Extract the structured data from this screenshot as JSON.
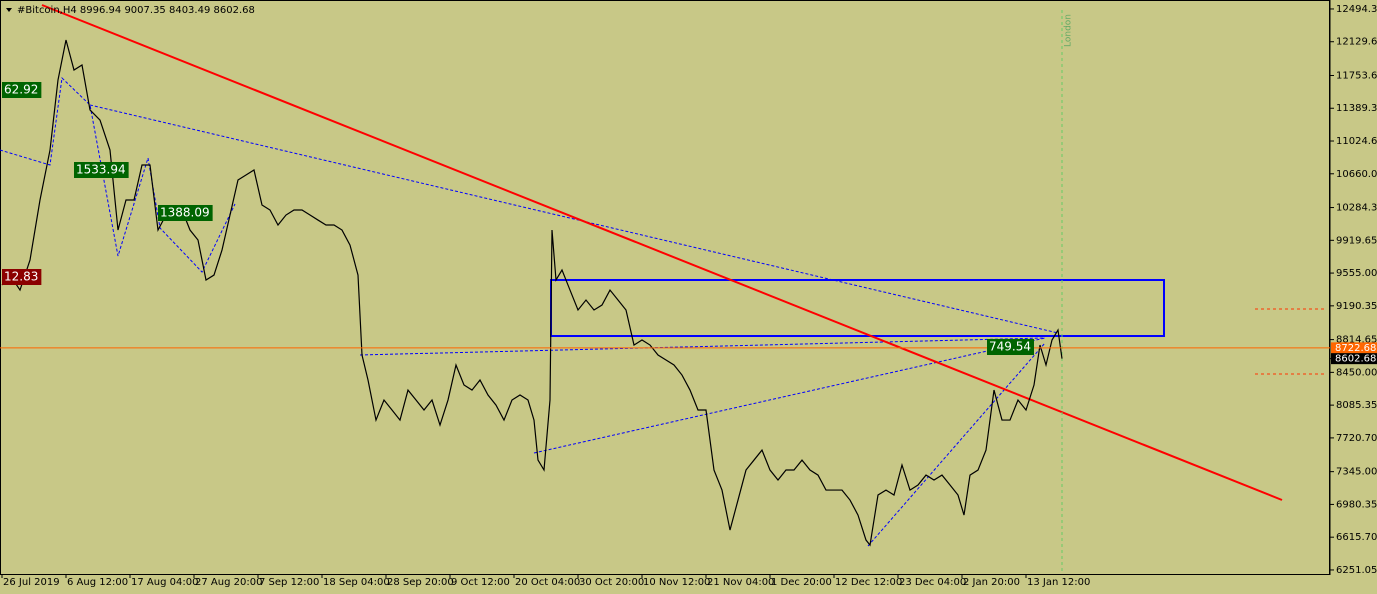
{
  "chart_data": {
    "type": "line",
    "header": "#Bitcoin,H4  8996.94 9007.35 8403.49 8602.68",
    "x": [
      0,
      8,
      18,
      28,
      38,
      48,
      56,
      64,
      72,
      80,
      88,
      98,
      108,
      116,
      124,
      132,
      140,
      148,
      156,
      164,
      172,
      180,
      188,
      196,
      204,
      212,
      220,
      228,
      236,
      244,
      252,
      260,
      268,
      276,
      284,
      292,
      300,
      308,
      316,
      324,
      332,
      340,
      348,
      356,
      360,
      366,
      374,
      382,
      390,
      398,
      406,
      414,
      422,
      430,
      438,
      446,
      454,
      462,
      470,
      478,
      486,
      494,
      502,
      510,
      518,
      526,
      532,
      536,
      542,
      548,
      550,
      554,
      560,
      568,
      576,
      584,
      592,
      600,
      608,
      616,
      624,
      632,
      640,
      648,
      656,
      664,
      672,
      680,
      688,
      696,
      704,
      712,
      720,
      728,
      736,
      744,
      752,
      760,
      768,
      776,
      784,
      792,
      800,
      808,
      816,
      824,
      832,
      840,
      848,
      856,
      864,
      868,
      876,
      884,
      892,
      900,
      908,
      916,
      924,
      932,
      940,
      948,
      956,
      962,
      968,
      976,
      984,
      992,
      1000,
      1008,
      1016,
      1024,
      1032,
      1038,
      1044,
      1050,
      1056,
      1060
    ],
    "series": [
      {
        "name": "#Bitcoin,H4",
        "color": "#000000",
        "values": [
          9422,
          9533,
          9366,
          9700,
          10368,
          10924,
          11704,
          12149,
          11815,
          11871,
          11370,
          11258,
          10924,
          10034,
          10368,
          10368,
          10758,
          10758,
          10034,
          10201,
          10145,
          10257,
          10034,
          9923,
          9478,
          9533,
          9811,
          10201,
          10591,
          10646,
          10702,
          10312,
          10257,
          10090,
          10201,
          10257,
          10257,
          10201,
          10145,
          10090,
          10090,
          10034,
          9867,
          9533,
          8643,
          8365,
          7919,
          8142,
          8031,
          7919,
          8253,
          8142,
          8031,
          8142,
          7864,
          8142,
          8532,
          8309,
          8253,
          8365,
          8198,
          8086,
          7919,
          8142,
          8198,
          8142,
          7919,
          7474,
          7363,
          8142,
          10034,
          9478,
          9589,
          9366,
          9144,
          9255,
          9144,
          9199,
          9366,
          9255,
          9144,
          8754,
          8810,
          8754,
          8643,
          8587,
          8532,
          8420,
          8253,
          8031,
          8031,
          7363,
          7140,
          6695,
          7029,
          7363,
          7474,
          7585,
          7363,
          7252,
          7363,
          7363,
          7474,
          7363,
          7307,
          7140,
          7140,
          7140,
          7029,
          6862,
          6584,
          6528,
          7085,
          7140,
          7085,
          7419,
          7140,
          7196,
          7307,
          7252,
          7307,
          7196,
          7085,
          6862,
          7307,
          7363,
          7585,
          8253,
          7919,
          7919,
          8142,
          8031,
          8309,
          8754,
          8532,
          8810,
          8921,
          8603
        ]
      }
    ],
    "xlim": [
      -2,
      1328
    ],
    "xticks": [
      {
        "value": 0,
        "label": "26 Jul 2019"
      },
      {
        "value": 64,
        "label": "6 Aug 12:00"
      },
      {
        "value": 128,
        "label": "17 Aug 04:00"
      },
      {
        "value": 192,
        "label": "27 Aug 20:00"
      },
      {
        "value": 256,
        "label": "7 Sep 12:00"
      },
      {
        "value": 320,
        "label": "18 Sep 04:00"
      },
      {
        "value": 384,
        "label": "28 Sep 20:00"
      },
      {
        "value": 448,
        "label": "9 Oct 12:00"
      },
      {
        "value": 512,
        "label": "20 Oct 04:00"
      },
      {
        "value": 576,
        "label": "30 Oct 20:00"
      },
      {
        "value": 640,
        "label": "10 Nov 12:00"
      },
      {
        "value": 704,
        "label": "21 Nov 04:00"
      },
      {
        "value": 768,
        "label": "1 Dec 20:00"
      },
      {
        "value": 832,
        "label": "12 Dec 12:00"
      },
      {
        "value": 896,
        "label": "23 Dec 04:00"
      },
      {
        "value": 960,
        "label": "2 Jan 20:00"
      },
      {
        "value": 1024,
        "label": "13 Jan 12:00"
      }
    ],
    "ylim": [
      6206,
      12594
    ],
    "yticks": [
      {
        "value": 12494.3,
        "label": "12494.30"
      },
      {
        "value": 12129.65,
        "label": "12129.65"
      },
      {
        "value": 11753.6,
        "label": "11753.60"
      },
      {
        "value": 11389.3,
        "label": "11389.30"
      },
      {
        "value": 11024.65,
        "label": "11024.65"
      },
      {
        "value": 10660,
        "label": "10660.00"
      },
      {
        "value": 10284.3,
        "label": "10284.30"
      },
      {
        "value": 9919.65,
        "label": "9919.65"
      },
      {
        "value": 9555,
        "label": "9555.00"
      },
      {
        "value": 9190.35,
        "label": "9190.35"
      },
      {
        "value": 8814.65,
        "label": "8814.65"
      },
      {
        "value": 8450,
        "label": "8450.00"
      },
      {
        "value": 8085.35,
        "label": "8085.35"
      },
      {
        "value": 7720.7,
        "label": "7720.70"
      },
      {
        "value": 7345,
        "label": "7345.00"
      },
      {
        "value": 6980.35,
        "label": "6980.35"
      },
      {
        "value": 6615.7,
        "label": "6615.70"
      },
      {
        "value": 6251.05,
        "label": "6251.05"
      }
    ],
    "price_lines": [
      {
        "value": 8722.68,
        "label": "8722.68",
        "color": "#ff6600"
      },
      {
        "value": 8602.68,
        "label": "8602.68",
        "color": "#000000"
      }
    ],
    "annotations": [
      {
        "text": "62.92",
        "color": "#006400"
      },
      {
        "text": "1533.94",
        "color": "#006400"
      },
      {
        "text": "1388.09",
        "color": "#006400"
      },
      {
        "text": "749.54",
        "color": "#006400"
      },
      {
        "text": "12.83",
        "color": "#8b0000"
      }
    ],
    "session_label": "London"
  }
}
